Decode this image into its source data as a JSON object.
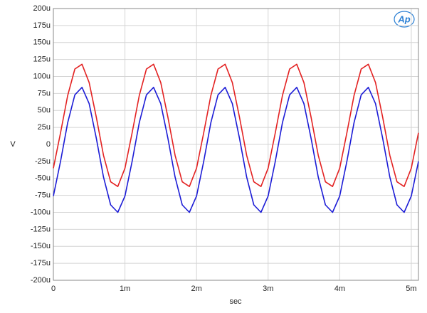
{
  "chart_data": {
    "type": "line",
    "ylabel": "V",
    "xlabel": "sec",
    "logo": "Ap",
    "x": [
      0,
      0.0001,
      0.0002,
      0.0003,
      0.0004,
      0.0005,
      0.0006,
      0.0007,
      0.0008,
      0.0009,
      0.001,
      0.0011,
      0.0012,
      0.0013,
      0.0014,
      0.0015,
      0.0016,
      0.0017,
      0.0018,
      0.0019,
      0.002,
      0.0021,
      0.0022,
      0.0023,
      0.0024,
      0.0025,
      0.0026,
      0.0027,
      0.0028,
      0.0029,
      0.003,
      0.0031,
      0.0032,
      0.0033,
      0.0034,
      0.0035,
      0.0036,
      0.0037,
      0.0038,
      0.0039,
      0.004,
      0.0041,
      0.0042,
      0.0043,
      0.0044,
      0.0045,
      0.0046,
      0.0047,
      0.0048,
      0.0049,
      0.005,
      0.0051
    ],
    "series": [
      {
        "color": "#e32222",
        "values": [
          -3.5e-05,
          1.7e-05,
          7.2e-05,
          0.000111,
          0.000118,
          9.1e-05,
          4e-05,
          -1.6e-05,
          -5.5e-05,
          -6.2e-05,
          -3.5e-05,
          1.7e-05,
          7.2e-05,
          0.000111,
          0.000118,
          9.1e-05,
          4e-05,
          -1.6e-05,
          -5.5e-05,
          -6.2e-05,
          -3.5e-05,
          1.7e-05,
          7.2e-05,
          0.000111,
          0.000118,
          9.1e-05,
          4e-05,
          -1.6e-05,
          -5.5e-05,
          -6.2e-05,
          -3.5e-05,
          1.7e-05,
          7.2e-05,
          0.000111,
          0.000118,
          9.1e-05,
          4e-05,
          -1.6e-05,
          -5.5e-05,
          -6.2e-05,
          -3.5e-05,
          1.7e-05,
          7.2e-05,
          0.000111,
          0.000118,
          9.1e-05,
          4e-05,
          -1.6e-05,
          -5.5e-05,
          -6.2e-05,
          -3.5e-05,
          1.7e-05
        ]
      },
      {
        "color": "#1c1cd6",
        "values": [
          -7.6e-05,
          -2.5e-05,
          3.2e-05,
          7.3e-05,
          8.4e-05,
          6e-05,
          9e-06,
          -4.8e-05,
          -8.9e-05,
          -0.0001,
          -7.6e-05,
          -2.5e-05,
          3.2e-05,
          7.3e-05,
          8.4e-05,
          6e-05,
          9e-06,
          -4.8e-05,
          -8.9e-05,
          -0.0001,
          -7.6e-05,
          -2.5e-05,
          3.2e-05,
          7.3e-05,
          8.4e-05,
          6e-05,
          9e-06,
          -4.8e-05,
          -8.9e-05,
          -0.0001,
          -7.6e-05,
          -2.5e-05,
          3.2e-05,
          7.3e-05,
          8.4e-05,
          6e-05,
          9e-06,
          -4.8e-05,
          -8.9e-05,
          -0.0001,
          -7.6e-05,
          -2.5e-05,
          3.2e-05,
          7.3e-05,
          8.4e-05,
          6e-05,
          9e-06,
          -4.8e-05,
          -8.9e-05,
          -0.0001,
          -7.6e-05,
          -2.5e-05
        ]
      }
    ],
    "xlim": [
      0,
      0.0051
    ],
    "xticks": [
      0,
      {
        "value": 0.001,
        "label": "1m"
      },
      {
        "value": 0.002,
        "label": "2m"
      },
      {
        "value": 0.003,
        "label": "3m"
      },
      {
        "value": 0.004,
        "label": "4m"
      },
      {
        "value": 0.005,
        "label": "5m"
      }
    ],
    "ylim": [
      -0.0002,
      0.0002
    ],
    "yticks": [
      {
        "value": -0.0002,
        "label": "-200u"
      },
      {
        "value": -0.000175,
        "label": "-175u"
      },
      {
        "value": -0.00015,
        "label": "-150u"
      },
      {
        "value": -0.000125,
        "label": "-125u"
      },
      {
        "value": -0.0001,
        "label": "-100u"
      },
      {
        "value": -7.5e-05,
        "label": "-75u"
      },
      {
        "value": -5e-05,
        "label": "-50u"
      },
      {
        "value": -2.5e-05,
        "label": "-25u"
      },
      0,
      {
        "value": 2.5e-05,
        "label": "25u"
      },
      {
        "value": 5e-05,
        "label": "50u"
      },
      {
        "value": 7.5e-05,
        "label": "75u"
      },
      {
        "value": 0.0001,
        "label": "100u"
      },
      {
        "value": 0.000125,
        "label": "125u"
      },
      {
        "value": 0.00015,
        "label": "150u"
      },
      {
        "value": 0.000175,
        "label": "175u"
      },
      {
        "value": 0.0002,
        "label": "200u"
      }
    ],
    "grid": true
  }
}
